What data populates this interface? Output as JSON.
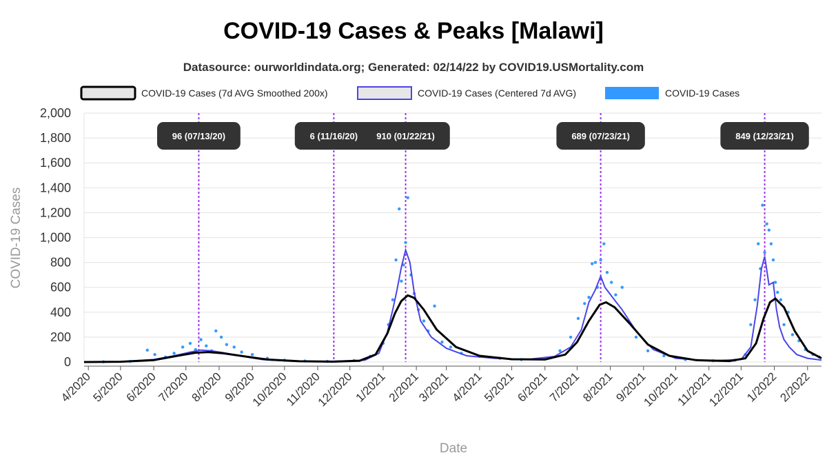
{
  "chart_data": {
    "type": "line",
    "title": "COVID-19 Cases & Peaks [Malawi]",
    "subtitle": "Datasource: ourworldindata.org; Generated: 02/14/22 by COVID19.USMortality.com",
    "xlabel": "Date",
    "ylabel": "COVID-19 Cases",
    "ylim": [
      0,
      2000
    ],
    "yticks": [
      0,
      200,
      400,
      600,
      800,
      1000,
      1200,
      1400,
      1600,
      1800,
      2000
    ],
    "ytick_labels": [
      "0",
      "200",
      "400",
      "600",
      "800",
      "1,000",
      "1,200",
      "1,400",
      "1,600",
      "1,800",
      "2,000"
    ],
    "xlim": [
      "2020-03-28",
      "2022-02-14"
    ],
    "xticks": [
      "2020-04-01",
      "2020-05-01",
      "2020-06-01",
      "2020-07-01",
      "2020-08-01",
      "2020-09-01",
      "2020-10-01",
      "2020-11-01",
      "2020-12-01",
      "2021-01-01",
      "2021-02-01",
      "2021-03-01",
      "2021-04-01",
      "2021-05-01",
      "2021-06-01",
      "2021-07-01",
      "2021-08-01",
      "2021-09-01",
      "2021-10-01",
      "2021-11-01",
      "2021-12-01",
      "2022-01-01",
      "2022-02-01"
    ],
    "xtick_labels": [
      "4/2020",
      "5/2020",
      "6/2020",
      "7/2020",
      "8/2020",
      "9/2020",
      "10/2020",
      "11/2020",
      "12/2020",
      "1/2021",
      "2/2021",
      "3/2021",
      "4/2021",
      "5/2021",
      "6/2021",
      "7/2021",
      "8/2021",
      "9/2021",
      "10/2021",
      "11/2021",
      "12/2021",
      "1/2022",
      "2/2022"
    ],
    "grid": true,
    "legend_position": "top",
    "legend": [
      {
        "name": "COVID-19 Cases (7d AVG Smoothed 200x)",
        "color": "#000000",
        "fill": "#e6e6e6"
      },
      {
        "name": "COVID-19 Cases (Centered 7d AVG)",
        "color": "#4b44e6",
        "fill": "#e6e6e6"
      },
      {
        "name": "COVID-19 Cases",
        "color": "#3399ff",
        "fill": "#3399ff"
      }
    ],
    "peaks": [
      {
        "date": "2020-07-13",
        "label": "96 (07/13/20)"
      },
      {
        "date": "2020-11-16",
        "label": "6 (11/16/20)"
      },
      {
        "date": "2021-01-22",
        "label": "910 (01/22/21)"
      },
      {
        "date": "2021-07-23",
        "label": "689 (07/23/21)"
      },
      {
        "date": "2021-12-23",
        "label": "849 (12/23/21)"
      }
    ],
    "series": [
      {
        "name": "COVID-19 Cases (7d AVG Smoothed 200x)",
        "color": "#000000",
        "x": [
          "2020-03-28",
          "2020-05-01",
          "2020-06-01",
          "2020-06-20",
          "2020-07-10",
          "2020-07-22",
          "2020-08-05",
          "2020-08-25",
          "2020-09-15",
          "2020-10-15",
          "2020-11-15",
          "2020-12-10",
          "2020-12-25",
          "2021-01-05",
          "2021-01-12",
          "2021-01-18",
          "2021-01-24",
          "2021-01-30",
          "2021-02-08",
          "2021-02-20",
          "2021-03-10",
          "2021-04-01",
          "2021-05-01",
          "2021-06-01",
          "2021-06-20",
          "2021-07-01",
          "2021-07-12",
          "2021-07-22",
          "2021-07-28",
          "2021-08-05",
          "2021-08-20",
          "2021-09-05",
          "2021-09-25",
          "2021-10-20",
          "2021-11-20",
          "2021-12-05",
          "2021-12-15",
          "2021-12-22",
          "2021-12-28",
          "2022-01-02",
          "2022-01-10",
          "2022-01-20",
          "2022-02-01",
          "2022-02-14"
        ],
        "y": [
          0,
          2,
          15,
          45,
          75,
          80,
          70,
          45,
          20,
          6,
          3,
          10,
          60,
          230,
          390,
          490,
          535,
          515,
          420,
          260,
          120,
          50,
          22,
          20,
          60,
          160,
          330,
          460,
          480,
          440,
          300,
          140,
          50,
          15,
          8,
          30,
          150,
          350,
          480,
          510,
          440,
          250,
          90,
          30
        ]
      },
      {
        "name": "COVID-19 Cases (Centered 7d AVG)",
        "color": "#4b44e6",
        "x": [
          "2020-03-28",
          "2020-05-01",
          "2020-06-01",
          "2020-06-20",
          "2020-07-05",
          "2020-07-15",
          "2020-07-25",
          "2020-08-05",
          "2020-08-20",
          "2020-09-10",
          "2020-10-10",
          "2020-11-16",
          "2020-12-15",
          "2020-12-28",
          "2021-01-05",
          "2021-01-10",
          "2021-01-14",
          "2021-01-18",
          "2021-01-22",
          "2021-01-26",
          "2021-01-30",
          "2021-02-05",
          "2021-02-15",
          "2021-03-01",
          "2021-03-20",
          "2021-04-15",
          "2021-05-15",
          "2021-06-10",
          "2021-06-25",
          "2021-07-05",
          "2021-07-12",
          "2021-07-18",
          "2021-07-23",
          "2021-07-27",
          "2021-08-03",
          "2021-08-12",
          "2021-08-25",
          "2021-09-10",
          "2021-10-01",
          "2021-11-01",
          "2021-12-01",
          "2021-12-10",
          "2021-12-16",
          "2021-12-20",
          "2021-12-23",
          "2021-12-27",
          "2021-12-31",
          "2022-01-03",
          "2022-01-06",
          "2022-01-10",
          "2022-01-15",
          "2022-01-22",
          "2022-02-01",
          "2022-02-14"
        ],
        "y": [
          0,
          3,
          20,
          50,
          80,
          96,
          90,
          75,
          50,
          20,
          6,
          6,
          15,
          70,
          240,
          420,
          580,
          760,
          900,
          800,
          560,
          330,
          200,
          110,
          50,
          30,
          20,
          45,
          120,
          260,
          480,
          580,
          689,
          600,
          520,
          420,
          250,
          100,
          30,
          10,
          20,
          120,
          450,
          750,
          849,
          620,
          640,
          420,
          280,
          180,
          120,
          60,
          30,
          15
        ]
      },
      {
        "name": "COVID-19 Cases",
        "color": "#3399ff",
        "x": [
          "2020-04-15",
          "2020-05-10",
          "2020-05-26",
          "2020-06-02",
          "2020-06-12",
          "2020-06-20",
          "2020-06-28",
          "2020-07-05",
          "2020-07-10",
          "2020-07-15",
          "2020-07-20",
          "2020-07-25",
          "2020-07-29",
          "2020-08-03",
          "2020-08-08",
          "2020-08-15",
          "2020-08-22",
          "2020-09-01",
          "2020-09-15",
          "2020-10-01",
          "2020-10-20",
          "2020-11-10",
          "2020-12-05",
          "2020-12-20",
          "2021-01-01",
          "2021-01-06",
          "2021-01-10",
          "2021-01-13",
          "2021-01-16",
          "2021-01-18",
          "2021-01-20",
          "2021-01-22",
          "2021-01-24",
          "2021-01-27",
          "2021-01-30",
          "2021-02-03",
          "2021-02-08",
          "2021-02-12",
          "2021-02-18",
          "2021-02-25",
          "2021-03-05",
          "2021-03-15",
          "2021-04-01",
          "2021-04-20",
          "2021-05-10",
          "2021-06-01",
          "2021-06-15",
          "2021-06-25",
          "2021-07-02",
          "2021-07-08",
          "2021-07-12",
          "2021-07-15",
          "2021-07-18",
          "2021-07-20",
          "2021-07-23",
          "2021-07-26",
          "2021-07-29",
          "2021-08-02",
          "2021-08-06",
          "2021-08-12",
          "2021-08-18",
          "2021-08-25",
          "2021-09-05",
          "2021-09-20",
          "2021-10-10",
          "2021-11-05",
          "2021-11-25",
          "2021-12-05",
          "2021-12-10",
          "2021-12-14",
          "2021-12-17",
          "2021-12-19",
          "2021-12-21",
          "2021-12-23",
          "2021-12-25",
          "2021-12-27",
          "2021-12-29",
          "2021-12-31",
          "2022-01-02",
          "2022-01-04",
          "2022-01-07",
          "2022-01-10",
          "2022-01-14",
          "2022-01-18",
          "2022-01-24",
          "2022-01-30",
          "2022-02-06",
          "2022-02-12"
        ],
        "y": [
          2,
          5,
          95,
          60,
          40,
          70,
          120,
          150,
          100,
          180,
          130,
          90,
          250,
          200,
          140,
          120,
          80,
          60,
          30,
          15,
          8,
          5,
          12,
          45,
          150,
          300,
          500,
          820,
          1230,
          650,
          780,
          960,
          1320,
          700,
          550,
          420,
          330,
          250,
          450,
          160,
          120,
          70,
          45,
          30,
          20,
          30,
          90,
          200,
          350,
          470,
          520,
          790,
          800,
          600,
          820,
          950,
          720,
          640,
          540,
          600,
          330,
          200,
          90,
          50,
          20,
          10,
          15,
          60,
          300,
          500,
          950,
          750,
          1260,
          880,
          1110,
          1060,
          950,
          820,
          640,
          560,
          500,
          300,
          400,
          220,
          170,
          100,
          60,
          40
        ]
      }
    ]
  }
}
